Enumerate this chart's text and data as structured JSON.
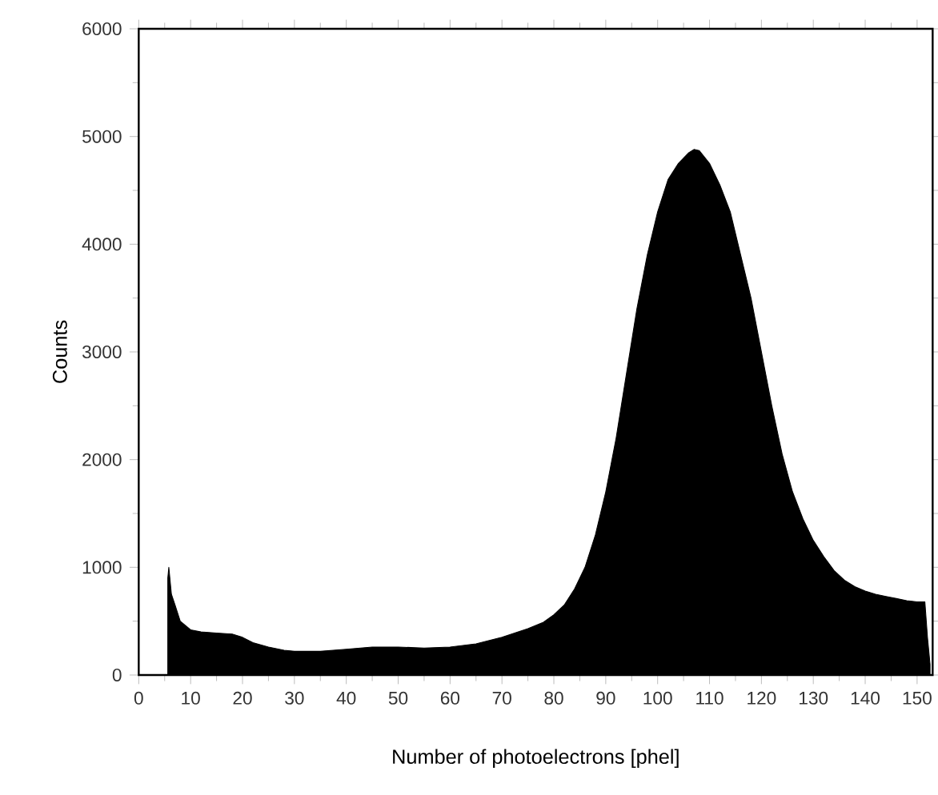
{
  "chart_data": {
    "type": "area",
    "xlabel": "Number of photoelectrons [phel]",
    "ylabel": "Counts",
    "color": "#000000",
    "xlim": [
      0,
      153
    ],
    "ylim": [
      0,
      6000
    ],
    "xticks": [
      0,
      10,
      20,
      30,
      40,
      50,
      60,
      70,
      80,
      90,
      100,
      110,
      120,
      130,
      140,
      150
    ],
    "yticks": [
      0,
      1000,
      2000,
      3000,
      4000,
      5000,
      6000
    ],
    "x": [
      5.6,
      5.8,
      6.3,
      7,
      8,
      10,
      12,
      15,
      18,
      20,
      22,
      25,
      28,
      30,
      35,
      40,
      45,
      50,
      55,
      60,
      65,
      70,
      75,
      78,
      80,
      82,
      84,
      86,
      88,
      90,
      92,
      94,
      96,
      98,
      100,
      102,
      104,
      106,
      107,
      108,
      110,
      112,
      114,
      116,
      118,
      120,
      122,
      124,
      126,
      128,
      130,
      132,
      134,
      136,
      138,
      140,
      142,
      144,
      146,
      148,
      150,
      151.5,
      152,
      152.5
    ],
    "values": [
      900,
      1000,
      750,
      650,
      500,
      420,
      400,
      390,
      380,
      350,
      300,
      260,
      230,
      220,
      220,
      240,
      260,
      260,
      250,
      260,
      290,
      350,
      430,
      490,
      560,
      650,
      800,
      1000,
      1300,
      1700,
      2200,
      2800,
      3400,
      3900,
      4300,
      4600,
      4750,
      4850,
      4880,
      4870,
      4750,
      4550,
      4300,
      3900,
      3500,
      3000,
      2500,
      2050,
      1700,
      1450,
      1250,
      1100,
      970,
      880,
      820,
      780,
      750,
      730,
      710,
      690,
      680,
      680,
      350,
      100
    ]
  }
}
